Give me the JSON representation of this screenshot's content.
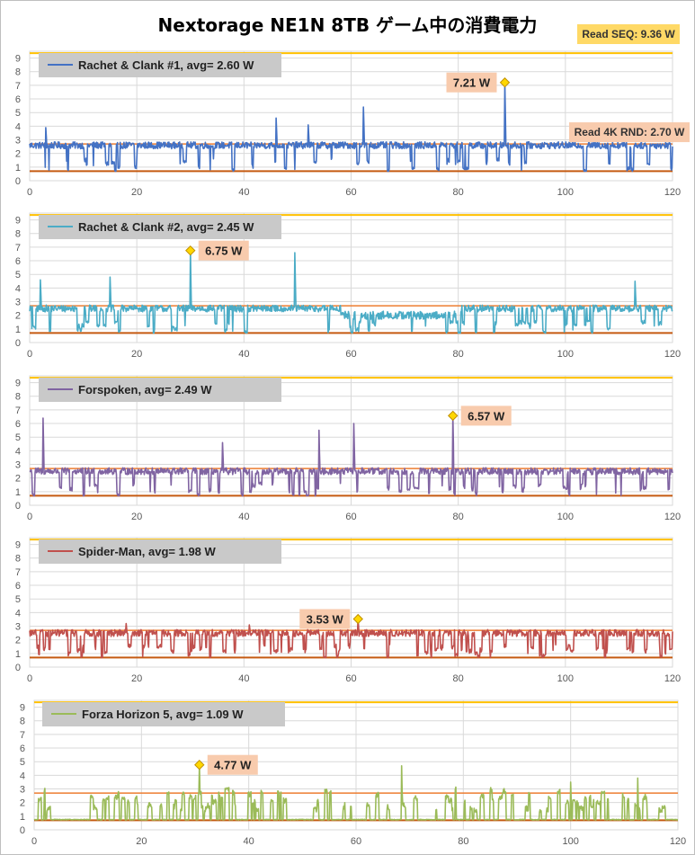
{
  "title": "Nextorage NE1N 8TB ゲーム中の消費電力",
  "read_seq_label": "Read SEQ:  9.36 W",
  "read_seq_value": 9.36,
  "read_rnd_label": "Read 4K RND:  2.70 W",
  "read_rnd_value": 2.7,
  "idle_value": 0.7,
  "colors": {
    "seq": "#ffc000",
    "rnd": "#ed7d31",
    "idle": "#c55a11",
    "legend_bg": "#c9c9c9",
    "peak_bg": "#f8cbad",
    "grid": "#d9d9d9"
  },
  "chart_data": [
    {
      "type": "line",
      "series": [
        {
          "name": "Rachet & Clank #1",
          "color": "#4472c4"
        }
      ],
      "legend": "Rachet & Clank #1,  avg=  2.60 W",
      "avg": 2.6,
      "base": 2.6,
      "dips": 50,
      "spikes": [
        [
          62.3,
          5.4
        ],
        [
          46,
          4.6
        ],
        [
          52,
          4.1
        ],
        [
          3,
          3.9
        ]
      ],
      "peak": {
        "x": 88.7,
        "y": 7.21,
        "label": "7.21 W"
      },
      "xlim": [
        0,
        120
      ],
      "ylim": [
        0,
        9.5
      ],
      "xticks": [
        0,
        20,
        40,
        60,
        80,
        100,
        120
      ],
      "yticks": [
        0,
        1,
        2,
        3,
        4,
        5,
        6,
        7,
        8,
        9
      ],
      "show_rnd_label": true
    },
    {
      "type": "line",
      "series": [
        {
          "name": "Rachet & Clank #2",
          "color": "#4bacc6"
        }
      ],
      "legend": "Rachet & Clank #2,  avg=  2.45 W",
      "avg": 2.45,
      "base": 2.5,
      "dips": 70,
      "spikes": [
        [
          49.5,
          6.6
        ],
        [
          15,
          4.8
        ],
        [
          2,
          4.6
        ],
        [
          113,
          4.5
        ]
      ],
      "peak": {
        "x": 30.0,
        "y": 6.75,
        "label": "6.75 W"
      },
      "xlim": [
        0,
        120
      ],
      "ylim": [
        0,
        9.5
      ],
      "xticks": [
        0,
        20,
        40,
        60,
        80,
        100,
        120
      ],
      "yticks": [
        0,
        1,
        2,
        3,
        4,
        5,
        6,
        7,
        8,
        9
      ],
      "show_rnd_label": false
    },
    {
      "type": "line",
      "series": [
        {
          "name": "Forspoken",
          "color": "#8064a2"
        }
      ],
      "legend": "Forspoken,  avg=  2.49 W",
      "avg": 2.49,
      "base": 2.5,
      "dips": 65,
      "spikes": [
        [
          2.5,
          6.4
        ],
        [
          60.5,
          6.0
        ],
        [
          54,
          5.5
        ],
        [
          36,
          4.6
        ]
      ],
      "peak": {
        "x": 79.0,
        "y": 6.57,
        "label": "6.57 W"
      },
      "xlim": [
        0,
        120
      ],
      "ylim": [
        0,
        9.5
      ],
      "xticks": [
        0,
        20,
        40,
        60,
        80,
        100,
        120
      ],
      "yticks": [
        0,
        1,
        2,
        3,
        4,
        5,
        6,
        7,
        8,
        9
      ],
      "show_rnd_label": false
    },
    {
      "type": "line",
      "series": [
        {
          "name": "Spider-Man",
          "color": "#c0504d"
        }
      ],
      "legend": "Spider-Man,  avg=  1.98 W",
      "avg": 1.98,
      "base": 2.5,
      "dips": 95,
      "spikes": [
        [
          18,
          3.2
        ],
        [
          41,
          3.1
        ]
      ],
      "peak": {
        "x": 61.3,
        "y": 3.53,
        "label": "3.53 W"
      },
      "xlim": [
        0,
        120
      ],
      "ylim": [
        0,
        9.5
      ],
      "xticks": [
        0,
        20,
        40,
        60,
        80,
        100,
        120
      ],
      "yticks": [
        0,
        1,
        2,
        3,
        4,
        5,
        6,
        7,
        8,
        9
      ],
      "show_rnd_label": false
    },
    {
      "type": "line",
      "series": [
        {
          "name": "Forza Horizon 5",
          "color": "#9bbb59"
        }
      ],
      "legend": "Forza Horizon 5,  avg=  1.09 W",
      "avg": 1.09,
      "base": 0.75,
      "dips": 0,
      "spikes": [
        [
          68.5,
          4.7
        ],
        [
          112.5,
          3.8
        ],
        [
          100,
          3.5
        ]
      ],
      "peak": {
        "x": 30.8,
        "y": 4.77,
        "label": "4.77 W"
      },
      "xlim": [
        0,
        120
      ],
      "ylim": [
        0,
        9.5
      ],
      "xticks": [
        0,
        20,
        40,
        60,
        80,
        100,
        120
      ],
      "yticks": [
        0,
        1,
        2,
        3,
        4,
        5,
        6,
        7,
        8,
        9
      ],
      "show_rnd_label": false
    }
  ]
}
